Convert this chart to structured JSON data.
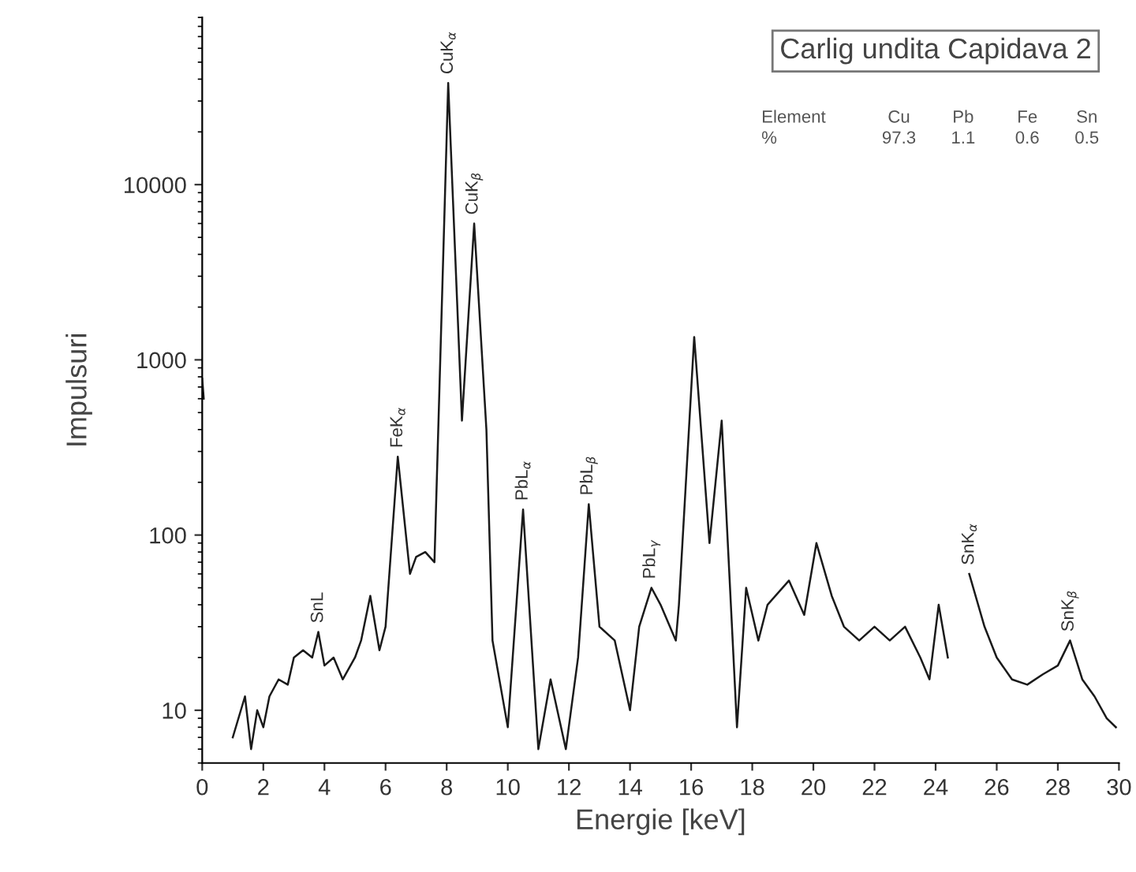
{
  "chart_data": {
    "type": "line",
    "title": "Carlig undita Capidava 2",
    "xlabel": "Energie [keV]",
    "ylabel": "Impulsuri",
    "log": "y",
    "xlim": [
      0,
      30
    ],
    "xticks": [
      0,
      2,
      4,
      6,
      8,
      10,
      12,
      14,
      16,
      18,
      20,
      22,
      24,
      26,
      28,
      30
    ],
    "ylim": [
      5,
      90000
    ],
    "yticks": [
      10,
      100,
      1000,
      10000
    ],
    "grid": false,
    "legend": false,
    "marker": "none",
    "line_style": "solid",
    "series": [
      {
        "color": "#1a1a1a",
        "x": [
          0,
          0.05,
          0.15,
          1.0,
          1.4,
          1.6,
          1.8,
          2.0,
          2.2,
          2.5,
          2.8,
          3.0,
          3.3,
          3.6,
          3.8,
          4.0,
          4.3,
          4.6,
          5.0,
          5.2,
          5.5,
          5.8,
          6.0,
          6.4,
          6.8,
          7.0,
          7.3,
          7.6,
          8.05,
          8.5,
          8.9,
          9.3,
          9.5,
          10.0,
          10.5,
          11.0,
          11.4,
          11.9,
          12.3,
          12.65,
          13.0,
          13.5,
          14.0,
          14.3,
          14.7,
          15.0,
          15.5,
          15.6,
          16.1,
          16.6,
          17.0,
          17.5,
          17.8,
          18.2,
          18.5,
          19.2,
          19.7,
          20.1,
          20.6,
          21.0,
          21.5,
          22.0,
          22.5,
          23.0,
          23.5,
          23.8,
          24.1,
          24.4,
          24.55,
          25.1,
          25.6,
          26.0,
          26.5,
          27.0,
          27.5,
          28.0,
          28.4,
          28.8,
          29.2,
          29.6,
          29.9
        ],
        "values": [
          780,
          600,
          null,
          7,
          12,
          6,
          10,
          8,
          12,
          15,
          14,
          20,
          22,
          20,
          28,
          18,
          20,
          15,
          20,
          25,
          45,
          22,
          30,
          280,
          60,
          75,
          80,
          70,
          38000,
          450,
          6000,
          400,
          25,
          8,
          140,
          6,
          15,
          6,
          20,
          150,
          30,
          25,
          10,
          30,
          50,
          40,
          25,
          40,
          1350,
          90,
          450,
          8,
          50,
          25,
          40,
          55,
          35,
          90,
          45,
          30,
          25,
          30,
          25,
          30,
          20,
          15,
          40,
          20,
          null,
          60,
          30,
          20,
          15,
          14,
          16,
          18,
          25,
          15,
          12,
          9,
          8
        ]
      }
    ],
    "annotations": [
      {
        "text": "SnL",
        "x": 3.8,
        "y": 28
      },
      {
        "text": "FeK$_{α}$",
        "x": 6.4,
        "y": 280
      },
      {
        "text": "CuK$_{α}$",
        "x": 8.05,
        "y": 38000
      },
      {
        "text": "CuK$_{β}$",
        "x": 8.9,
        "y": 6000
      },
      {
        "text": "PbL$_{α}$",
        "x": 10.5,
        "y": 140
      },
      {
        "text": "PbL$_{β}$",
        "x": 12.65,
        "y": 150
      },
      {
        "text": "PbL$_{γ}$",
        "x": 14.7,
        "y": 50
      },
      {
        "text": "SnK$_{α}$",
        "x": 25.1,
        "y": 60
      },
      {
        "text": "SnK$_{β}$",
        "x": 28.4,
        "y": 25
      },
      "Element\tCu\tPb\tFe\tSn",
      "%\t97.3\t1.1\t0.6\t0.5"
    ]
  }
}
